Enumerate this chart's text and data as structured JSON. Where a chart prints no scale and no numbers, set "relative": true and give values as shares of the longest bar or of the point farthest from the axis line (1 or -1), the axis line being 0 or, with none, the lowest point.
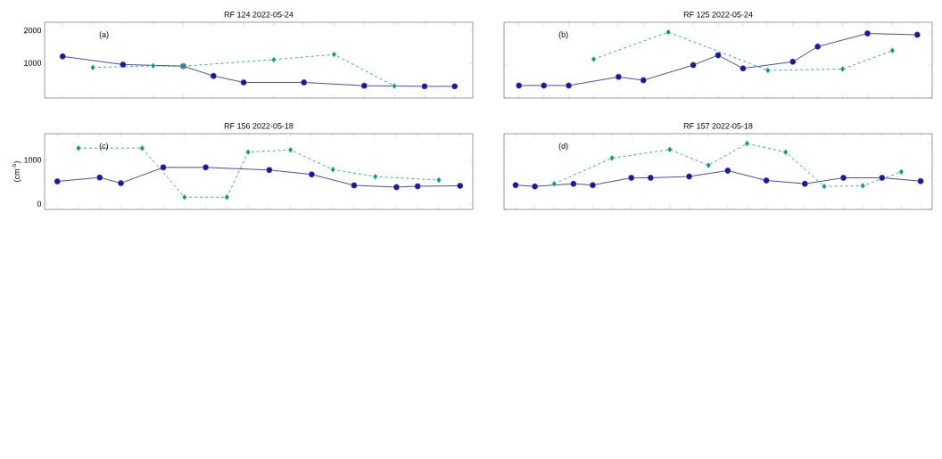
{
  "chart_data": [
    {
      "type": "line",
      "title": "RF 124 2022-05-24",
      "annotations": [
        "(a)"
      ],
      "categories": [
        null,
        null,
        null,
        null,
        null,
        null,
        null,
        null,
        null,
        null,
        null,
        null,
        null,
        null
      ],
      "ylim": [
        -80,
        2250
      ],
      "yticks": [
        1000,
        2000
      ],
      "tick_labels": "y",
      "series": [
        {
          "color": "#1a1a9c",
          "marker": "circle",
          "line_style": "solid",
          "values": [
            1200,
            null,
            950,
            null,
            900,
            600,
            400,
            null,
            400,
            null,
            300,
            null,
            280,
            280
          ]
        },
        {
          "color": "#00a070",
          "marker": "diamond",
          "line_style": "dashed",
          "values": [
            null,
            860,
            null,
            910,
            900,
            null,
            null,
            1100,
            null,
            1260,
            null,
            290,
            null,
            null
          ]
        }
      ]
    },
    {
      "type": "line",
      "title": "RF 125 2022-05-24",
      "annotations": [
        "(b)"
      ],
      "categories": [
        null,
        null,
        null,
        null,
        null,
        null,
        null,
        null,
        null,
        null,
        null,
        null,
        null,
        null,
        null,
        null,
        null
      ],
      "relative": true,
      "tick_labels": false,
      "series": [
        {
          "color": "#1a1a9c",
          "marker": "circle",
          "line_style": "solid",
          "values": [
            0.19,
            0.19,
            0.19,
            null,
            0.32,
            0.27,
            null,
            0.5,
            0.65,
            0.45,
            null,
            0.55,
            0.78,
            null,
            0.98,
            null,
            0.96
          ]
        },
        {
          "color": "#00a070",
          "marker": "diamond",
          "line_style": "dashed",
          "values": [
            null,
            null,
            null,
            0.59,
            null,
            null,
            1,
            null,
            null,
            null,
            0.42,
            null,
            null,
            0.44,
            null,
            0.72,
            null
          ]
        }
      ]
    },
    {
      "type": "line",
      "title": "RF 156 2022-05-18",
      "ylabel": "(cm$^{-3}$)",
      "annotations": [
        "(c)"
      ],
      "categories": [
        null,
        null,
        null,
        null,
        null,
        null,
        null,
        null,
        null,
        null,
        null,
        null,
        null,
        null,
        null,
        null,
        null,
        null,
        null,
        null
      ],
      "ylim": [
        -130,
        1600
      ],
      "yticks": [
        0,
        1000
      ],
      "tick_labels": "y",
      "series": [
        {
          "color": "#1a1a9c",
          "marker": "circle",
          "line_style": "solid",
          "values": [
            510,
            null,
            600,
            470,
            null,
            830,
            null,
            830,
            null,
            null,
            770,
            null,
            670,
            null,
            420,
            null,
            380,
            400,
            null,
            410
          ]
        },
        {
          "color": "#00a070",
          "marker": "diamond",
          "line_style": "dashed",
          "values": [
            null,
            1270,
            null,
            null,
            1270,
            null,
            150,
            null,
            150,
            1180,
            null,
            1230,
            null,
            780,
            null,
            620,
            null,
            null,
            540,
            null
          ]
        }
      ]
    },
    {
      "type": "line",
      "title": "RF 157 2022-05-18",
      "annotations": [
        "(d)"
      ],
      "categories": [
        null,
        null,
        null,
        null,
        null,
        null,
        null,
        null,
        null,
        null,
        null,
        null,
        null,
        null,
        null,
        null,
        null,
        null,
        null,
        null,
        null,
        null
      ],
      "relative": true,
      "tick_labels": false,
      "series": [
        {
          "color": "#1a1a9c",
          "marker": "circle",
          "line_style": "solid",
          "values": [
            0.37,
            0.35,
            null,
            0.39,
            0.37,
            null,
            0.48,
            0.48,
            null,
            0.5,
            null,
            0.59,
            null,
            0.44,
            null,
            0.39,
            null,
            0.48,
            null,
            0.48,
            null,
            0.43
          ]
        },
        {
          "color": "#00a070",
          "marker": "diamond",
          "line_style": "dashed",
          "values": [
            null,
            null,
            0.39,
            null,
            null,
            0.78,
            null,
            null,
            0.91,
            null,
            0.67,
            null,
            1,
            null,
            0.87,
            null,
            0.35,
            null,
            0.36,
            null,
            0.57,
            null
          ]
        }
      ]
    }
  ]
}
